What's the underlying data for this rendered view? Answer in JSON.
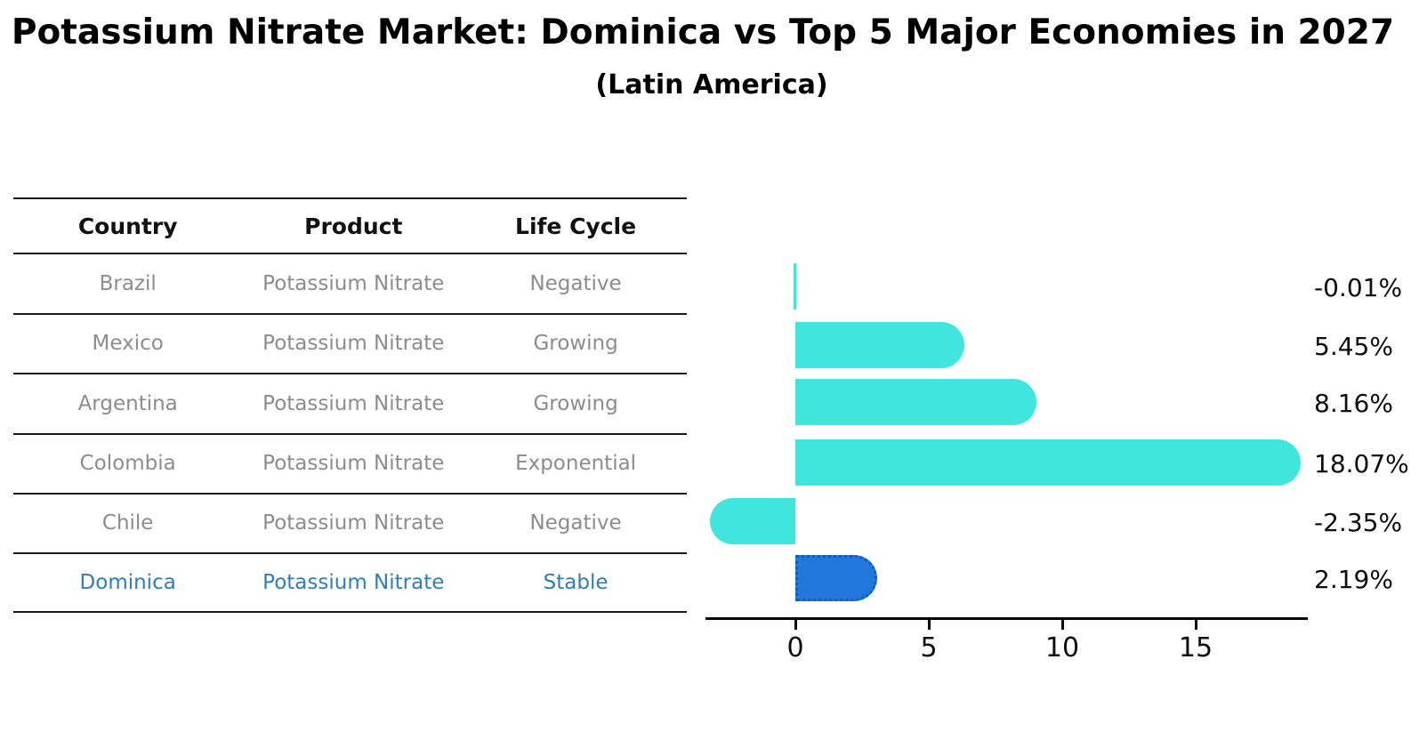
{
  "title": "Potassium Nitrate Market: Dominica vs Top 5 Major Economies in 2027",
  "subtitle": "(Latin America)",
  "table": {
    "columns": [
      "Country",
      "Product",
      "Life Cycle"
    ],
    "rows": [
      {
        "country": "Brazil",
        "product": "Potassium Nitrate",
        "life_cycle": "Negative",
        "highlight": false
      },
      {
        "country": "Mexico",
        "product": "Potassium Nitrate",
        "life_cycle": "Growing",
        "highlight": false
      },
      {
        "country": "Argentina",
        "product": "Potassium Nitrate",
        "life_cycle": "Growing",
        "highlight": false
      },
      {
        "country": "Colombia",
        "product": "Potassium Nitrate",
        "life_cycle": "Exponential",
        "highlight": false
      },
      {
        "country": "Chile",
        "product": "Potassium Nitrate",
        "life_cycle": "Negative",
        "highlight": false
      },
      {
        "country": "Dominica",
        "product": "Potassium Nitrate",
        "life_cycle": "Stable",
        "highlight": true
      }
    ]
  },
  "chart_data": {
    "type": "bar",
    "orientation": "horizontal",
    "categories": [
      "Brazil",
      "Mexico",
      "Argentina",
      "Colombia",
      "Chile",
      "Dominica"
    ],
    "values": [
      -0.01,
      5.45,
      8.16,
      18.07,
      -2.35,
      2.19
    ],
    "value_labels": [
      "-0.01%",
      "5.45%",
      "8.16%",
      "18.07%",
      "-2.35%",
      "2.19%"
    ],
    "x_ticks": [
      0,
      5,
      10,
      15
    ],
    "x_tick_labels": [
      "0",
      "5",
      "10",
      "15"
    ],
    "xlim": [
      -3.4,
      19.2
    ],
    "grid": false,
    "legend": "none",
    "title": "Potassium Nitrate Market: Dominica vs Top 5 Major Economies in 2027 (Latin America)",
    "xlabel": "",
    "ylabel": "",
    "bar_color": "#40E6DE",
    "highlight_color": "#2277DC",
    "highlight_index": 5,
    "highlight_text_color": "#2e7dbd",
    "row_text_color": "#8c8c8c"
  }
}
